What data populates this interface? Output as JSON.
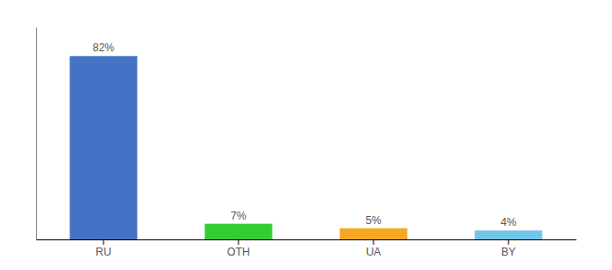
{
  "chart_data": {
    "type": "bar",
    "categories": [
      "RU",
      "OTH",
      "UA",
      "BY"
    ],
    "values": [
      82,
      7,
      5,
      4
    ],
    "value_labels": [
      "82%",
      "7%",
      "5%",
      "4%"
    ],
    "colors": [
      "#4472c4",
      "#33cc33",
      "#f5a623",
      "#74c6e8"
    ],
    "ylim": [
      0,
      95
    ],
    "data_labels": true,
    "tick_labels": "x"
  }
}
